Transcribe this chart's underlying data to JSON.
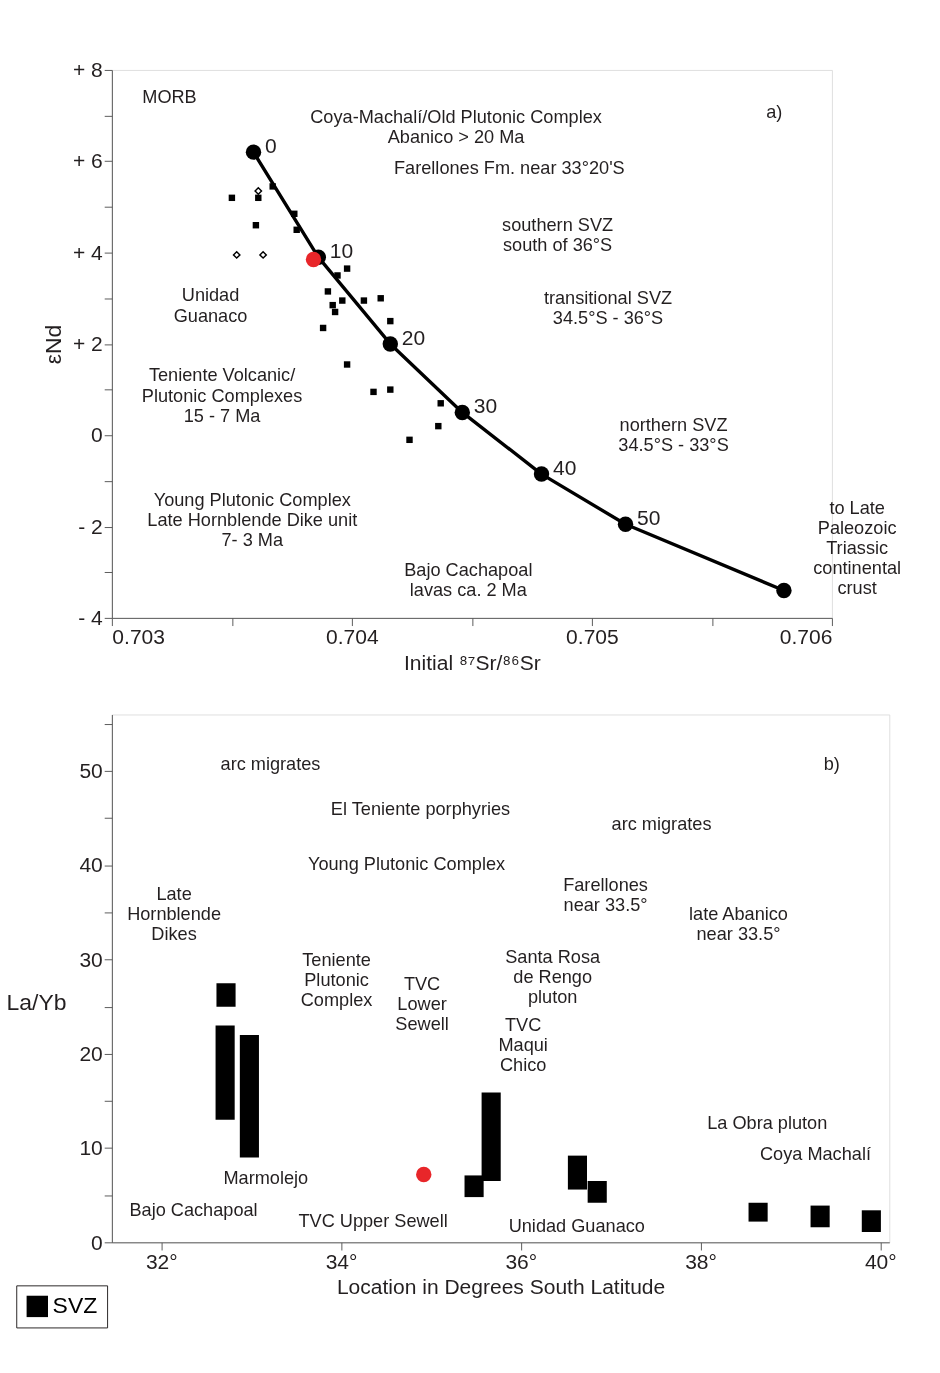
{
  "chart_data": [
    {
      "type": "line",
      "xlabel": "Initial ⁸⁷Sr/⁸⁶Sr",
      "ylabel": "εNd",
      "xlim": [
        0.703,
        0.706
      ],
      "ylim": [
        -4,
        8
      ],
      "xticks": [
        0.703,
        {
          "value": 0.7035,
          "label": null
        },
        0.704,
        {
          "value": 0.7045,
          "label": null
        },
        0.705,
        {
          "value": 0.7055,
          "label": null
        },
        0.706
      ],
      "yticks": [
        {
          "value": -4,
          "label": "- 4"
        },
        {
          "value": -3,
          "label": null
        },
        {
          "value": -2,
          "label": "- 2"
        },
        {
          "value": -1,
          "label": null
        },
        0,
        {
          "value": 1,
          "label": null
        },
        {
          "value": 2,
          "label": "+ 2"
        },
        {
          "value": 3,
          "label": null
        },
        {
          "value": 4,
          "label": "+ 4"
        },
        {
          "value": 5,
          "label": null
        },
        {
          "value": 6,
          "label": "+ 6"
        },
        {
          "value": 7,
          "label": null
        },
        {
          "value": 8,
          "label": "+ 8"
        }
      ],
      "grid": false,
      "series": [
        {
          "type": "scatter",
          "marker": "square",
          "color": "#000000",
          "x": [
            0.7035,
            0.70361,
            0.7036,
            0.70367,
            0.70376,
            0.70377,
            0.70398,
            0.70394,
            0.7039,
            0.70396,
            0.70405,
            0.70412,
            0.70392,
            0.70393,
            0.70388,
            0.70416,
            0.70398,
            0.70409,
            0.70416,
            0.70437,
            0.70436,
            0.70424
          ],
          "values": [
            5.2,
            5.2,
            4.6,
            5.45,
            4.85,
            4.5,
            3.65,
            3.5,
            3.15,
            2.95,
            2.95,
            3.0,
            2.85,
            2.7,
            2.35,
            2.5,
            1.55,
            0.95,
            1.0,
            0.7,
            0.2,
            -0.1
          ]
        },
        {
          "type": "scatter",
          "marker": "diamond",
          "color": "#000000",
          "x": [
            0.70361,
            0.70363,
            0.70352
          ],
          "values": [
            5.35,
            3.95,
            3.95
          ]
        },
        {
          "marker": "circle",
          "color": "#000000",
          "x": [
            0.70359,
            0.70386,
            0.70416,
            0.70446,
            0.70479,
            0.70514,
            0.7058
          ],
          "values": [
            6.2,
            3.9,
            2.0,
            0.5,
            -0.85,
            -1.95,
            -3.4
          ]
        },
        {
          "type": "scatter",
          "marker": "circle",
          "color": "#e8262a",
          "x": [
            0.70384
          ],
          "values": [
            3.85
          ]
        }
      ],
      "annotations": [
        "MORB",
        "Coya-Machalí/Old Plutonic Complex\nAbanico > 20 Ma",
        "Farellones Fm. near 33°20'S",
        "southern SVZ\nsouth of 36°S",
        "transitional SVZ\n34.5°S - 36°S",
        "northern SVZ\n34.5°S - 33°S",
        "Unidad\nGuanaco",
        "Teniente Volcanic/\nPlutonic Complexes\n15 - 7 Ma",
        "Young Plutonic Complex\nLate Hornblende Dike unit\n7- 3 Ma",
        "Bajo Cachapoal\nlavas ca. 2 Ma",
        "to Late\nPaleozoic\nTriassic\ncontinental\ncrust",
        "a)",
        {
          "text": "0",
          "x": 0.70359,
          "y": 6.2
        },
        {
          "text": "10",
          "x": 0.70386,
          "y": 3.9
        },
        {
          "text": "20",
          "x": 0.70416,
          "y": 2.0
        },
        {
          "text": "30",
          "x": 0.70446,
          "y": 0.5
        },
        {
          "text": "40",
          "x": 0.70479,
          "y": -0.85
        },
        {
          "text": "50",
          "x": 0.70514,
          "y": -1.95
        }
      ]
    },
    {
      "type": "bar",
      "xlabel": "Location in Degrees South Latitude",
      "ylabel": "La/Yb",
      "xlim": [
        31.45,
        40.1
      ],
      "ylim": [
        0,
        56
      ],
      "xticks": [
        {
          "value": 32,
          "label": "32°"
        },
        {
          "value": 34,
          "label": "34°"
        },
        {
          "value": 36,
          "label": "36°"
        },
        {
          "value": 38,
          "label": "38°"
        },
        {
          "value": 40,
          "label": "40°"
        }
      ],
      "yticks": [
        0,
        {
          "value": 5,
          "label": null
        },
        10,
        {
          "value": 15,
          "label": null
        },
        20,
        {
          "value": 25,
          "label": null
        },
        30,
        {
          "value": 35,
          "label": null
        },
        40,
        {
          "value": 45,
          "label": null
        },
        50,
        {
          "value": 55,
          "label": null
        }
      ],
      "grid": false,
      "legend": "bottom left",
      "series": [
        {
          "name": "SVZ",
          "color": "#000000",
          "x": [
            32.71,
            32.72,
            32.98,
            35.48,
            35.67,
            36.63,
            36.85,
            38.64,
            39.33,
            39.9
          ],
          "base": [
            13,
            25,
            9,
            4.8,
            6.5,
            5.6,
            4.2,
            2.2,
            1.6,
            1.1
          ],
          "values": [
            10,
            2.5,
            13,
            2.3,
            9.4,
            3.6,
            2.3,
            2.0,
            2.3,
            2.3
          ]
        },
        {
          "type": "scatter",
          "marker": "circle",
          "color": "#e8262a",
          "x": [
            34.92
          ],
          "values": [
            7.2
          ]
        }
      ],
      "annotations": [
        "arc migrates",
        "El Teniente porphyries",
        "Young Plutonic Complex",
        "Late\nHornblende\nDikes",
        "Teniente\nPlutonic\nComplex",
        "TVC\nLower\nSewell",
        "Santa Rosa\nde Rengo\npluton",
        "TVC\nMaqui\nChico",
        "Farellones\nnear 33.5°",
        "late Abanico\nnear 33.5°",
        "arc migrates",
        "La Obra pluton",
        "Coya Machalí",
        "Marmolejo",
        "Bajo Cachapoal",
        "TVC Upper Sewell",
        "Unidad Guanaco",
        "b)"
      ]
    }
  ]
}
